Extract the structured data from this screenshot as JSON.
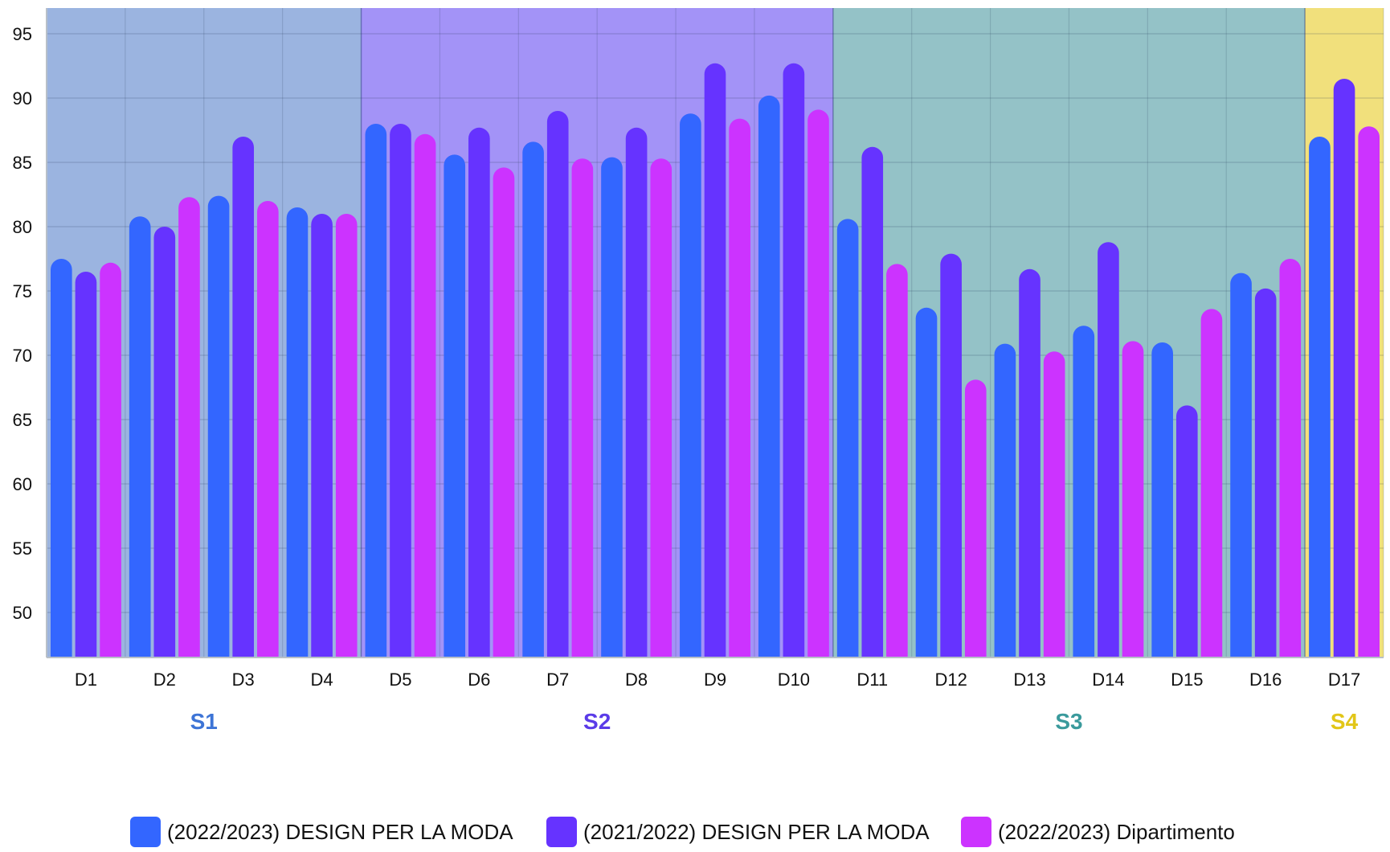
{
  "chart_data": {
    "type": "bar",
    "title": "",
    "xlabel": "",
    "ylabel": "",
    "ylim": [
      46.5,
      97
    ],
    "yticks": [
      50,
      55,
      60,
      65,
      70,
      75,
      80,
      85,
      90,
      95
    ],
    "grid": true,
    "legend_position": "bottom",
    "categories": [
      "D1",
      "D2",
      "D3",
      "D4",
      "D5",
      "D6",
      "D7",
      "D8",
      "D9",
      "D10",
      "D11",
      "D12",
      "D13",
      "D14",
      "D15",
      "D16",
      "D17"
    ],
    "series": [
      {
        "name": "(2022/2023) DESIGN PER LA MODA",
        "color": "#3366ff",
        "values": [
          77.5,
          80.8,
          82.4,
          81.5,
          88,
          85.6,
          86.6,
          85.4,
          88.8,
          90.2,
          80.6,
          73.7,
          70.9,
          72.3,
          71,
          76.4,
          87
        ]
      },
      {
        "name": "(2021/2022) DESIGN PER LA MODA",
        "color": "#6633ff",
        "values": [
          76.5,
          80,
          87,
          81,
          88,
          87.7,
          89,
          87.7,
          92.7,
          92.7,
          86.2,
          77.9,
          76.7,
          78.8,
          66.1,
          75.2,
          91.5
        ]
      },
      {
        "name": "(2022/2023) Dipartimento",
        "color": "#cc33ff",
        "values": [
          77.2,
          82.3,
          82,
          81,
          87.2,
          84.6,
          85.3,
          85.3,
          88.4,
          89.1,
          77.1,
          68.1,
          70.3,
          71.1,
          73.6,
          77.5,
          87.8
        ]
      }
    ],
    "sections": [
      {
        "label": "S1",
        "start": 0,
        "end": 3,
        "band_color": "#9bb4e0",
        "label_color": "#3d74d6"
      },
      {
        "label": "S2",
        "start": 4,
        "end": 9,
        "band_color": "#a393f7",
        "label_color": "#5a3be8"
      },
      {
        "label": "S3",
        "start": 10,
        "end": 15,
        "band_color": "#94c2c7",
        "label_color": "#3a9a9c"
      },
      {
        "label": "S4",
        "start": 16,
        "end": 16,
        "band_color": "#f1e07c",
        "label_color": "#e2c618"
      }
    ]
  }
}
